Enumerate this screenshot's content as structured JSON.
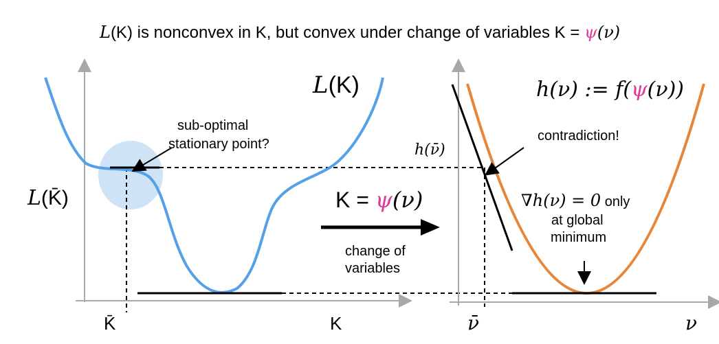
{
  "title": {
    "l_sym": "L",
    "k_paren": "(K)",
    "text_middle": " is nonconvex in K, but convex under change of variables ",
    "k_eq": "K = ",
    "psi": "ψ",
    "nu_paren": "(ν)"
  },
  "left_panel": {
    "curve_label_l": "L",
    "curve_label_k": "(K)",
    "yaxis_label_l": "L",
    "yaxis_label_k": "(K̄)",
    "xaxis_kbar": "K̄",
    "xaxis_k": "K",
    "annotation_line1": "sub-optimal",
    "annotation_line2": "stationary point?"
  },
  "middle": {
    "map_k_eq": "K = ",
    "map_psi": "ψ",
    "map_nu": "(ν)",
    "caption_line1": "change of",
    "caption_line2": "variables"
  },
  "right_panel": {
    "def_lhs": "h(ν) := f(",
    "def_psi": "ψ",
    "def_rhs": "(ν))",
    "hbar_label": "h(ν̄)",
    "contradiction": "contradiction!",
    "grad_math": "∇h(ν) = 0",
    "grad_only": " only",
    "grad_line2": "at global",
    "grad_line3": "minimum",
    "xaxis_nubar": "ν̄",
    "xaxis_nu": "ν"
  },
  "colors": {
    "blue_curve": "#55a0e8",
    "orange_curve": "#e6863a",
    "highlight": "#cfe3f7",
    "psi_magenta": "#e3389b",
    "axis_gray": "#a8a8a8"
  }
}
